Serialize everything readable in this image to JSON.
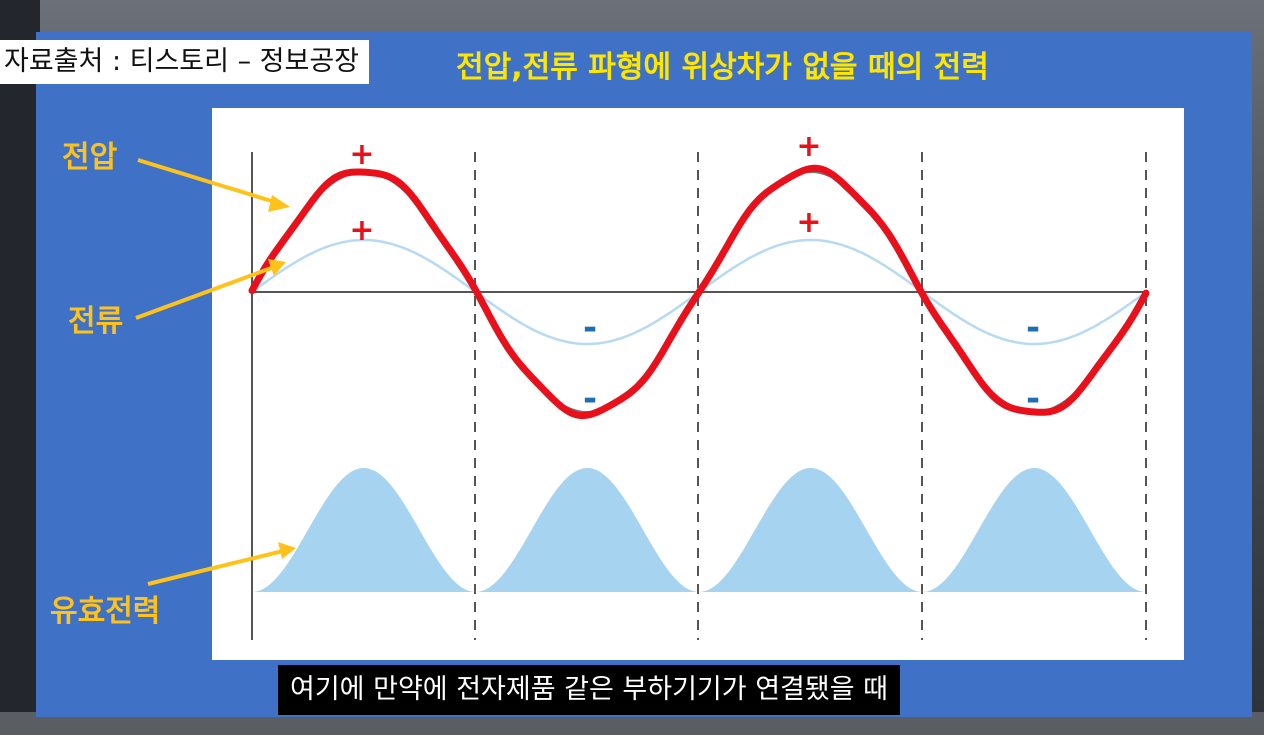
{
  "source_credit": "자료출처 : 티스토리 – 정보공장",
  "slide_title": "전압,전류 파형에 위상차가 없을 때의 전력",
  "labels": {
    "voltage": "전압",
    "current": "전류",
    "active_power": "유효전력"
  },
  "signs": {
    "voltage_positive": [
      "+",
      "+"
    ],
    "current_positive": [
      "+",
      "+"
    ],
    "current_negative": [
      "-",
      "-"
    ],
    "voltage_negative": [
      "-",
      "-"
    ]
  },
  "subtitle": "여기에 만약에 전자제품 같은 부하기기가 연결됐을 때",
  "colors": {
    "slide_bg": "#3f72c7",
    "title": "#ffe600",
    "label": "#ffc21a",
    "voltage_line": "#e8101a",
    "current_line": "#b7daf2",
    "power_fill": "#a6d3f0",
    "sign_plus": "#e8101a",
    "sign_minus": "#1f6db3"
  }
}
